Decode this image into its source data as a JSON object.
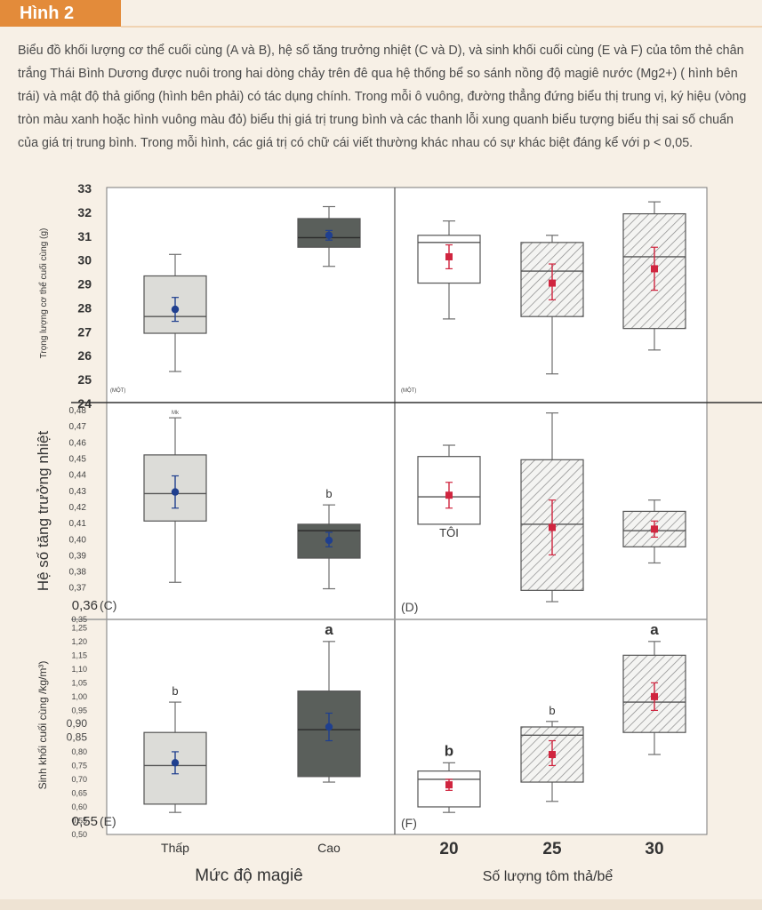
{
  "figure_tag": "Hình 2",
  "caption": "Biểu đồ khối lượng cơ thể cuối cùng (A và B), hệ số tăng trưởng nhiệt (C và D), và sinh khối cuối cùng (E và F) của tôm thẻ chân trắng Thái Bình Dương được nuôi trong hai dòng chảy trên đê qua hệ thống bể so sánh nồng độ magiê nước (Mg2+) ( hình bên trái) và mật độ thả giống (hình bên phải) có tác dụng chính. Trong mỗi ô vuông, đường thẳng đứng biểu thị trung vị, ký hiệu (vòng tròn màu xanh hoặc hình vuông màu đỏ) biểu thị giá trị trung bình và các thanh lỗi xung quanh biểu tượng biểu thị sai số chuẩn của giá trị trung bình. Trong mỗi hình, các giá trị có chữ cái viết thường khác nhau có sự khác biệt đáng kể với p < 0,05.",
  "colors": {
    "accent": "#e38b3a",
    "light_box": "#dcdcd8",
    "dark_box": "#5a5f5b",
    "blue_mean": "#1f3f8f",
    "red_mean": "#d0253f"
  },
  "chart_data": [
    {
      "panel": "A",
      "type": "box",
      "ylabel": "Trọng lượng cơ thể cuối cùng (g)",
      "ylim": [
        24,
        33
      ],
      "yticks": [
        "24",
        "25",
        "26",
        "27",
        "28",
        "29",
        "30",
        "31",
        "32",
        "33"
      ],
      "panel_label": "(MỘT)",
      "categories": [
        "Thấp",
        "Cao"
      ],
      "boxes": [
        {
          "min": 25.3,
          "q1": 26.9,
          "median": 27.6,
          "q3": 29.3,
          "max": 30.2,
          "mean": 27.9,
          "se_low": 27.4,
          "se_high": 28.4,
          "fill": "light",
          "letter": ""
        },
        {
          "min": 29.7,
          "q1": 30.5,
          "median": 30.9,
          "q3": 31.7,
          "max": 32.2,
          "mean": 31.0,
          "se_low": 30.8,
          "se_high": 31.2,
          "fill": "dark",
          "letter": ""
        }
      ]
    },
    {
      "panel": "B",
      "type": "box",
      "ylim": [
        24,
        33
      ],
      "panel_label": "(MỘT)",
      "categories": [
        "20",
        "25",
        "30"
      ],
      "boxes": [
        {
          "min": 27.5,
          "q1": 29.0,
          "median": 30.7,
          "q3": 31.0,
          "max": 31.6,
          "mean": 30.1,
          "se_low": 29.6,
          "se_high": 30.6,
          "fill": "white",
          "letter": ""
        },
        {
          "min": 25.2,
          "q1": 27.6,
          "median": 29.5,
          "q3": 30.7,
          "max": 31.0,
          "mean": 29.0,
          "se_low": 28.3,
          "se_high": 29.8,
          "fill": "hatch",
          "letter": ""
        },
        {
          "min": 26.2,
          "q1": 27.1,
          "median": 30.1,
          "q3": 31.9,
          "max": 32.4,
          "mean": 29.6,
          "se_low": 28.7,
          "se_high": 30.5,
          "fill": "hatch",
          "letter": ""
        }
      ]
    },
    {
      "panel": "C",
      "type": "box",
      "ylabel": "Hệ số tăng trưởng nhiệt",
      "ylim": [
        0.35,
        0.485
      ],
      "yticks": [
        "0,37",
        "0,38",
        "0,39",
        "0,40",
        "0,41",
        "0,42",
        "0,43",
        "0,44",
        "0,45",
        "0,46",
        "0,47",
        "0,48"
      ],
      "panel_label": "(C)",
      "ymin_label": "0,36",
      "top_letter": "Mk",
      "categories": [
        "Thấp",
        "Cao"
      ],
      "boxes": [
        {
          "min": 0.373,
          "q1": 0.411,
          "median": 0.428,
          "q3": 0.452,
          "max": 0.475,
          "mean": 0.429,
          "se_low": 0.419,
          "se_high": 0.439,
          "fill": "light",
          "letter": ""
        },
        {
          "min": 0.369,
          "q1": 0.388,
          "median": 0.405,
          "q3": 0.409,
          "max": 0.421,
          "mean": 0.399,
          "se_low": 0.395,
          "se_high": 0.404,
          "fill": "dark",
          "letter": "b"
        }
      ]
    },
    {
      "panel": "D",
      "type": "box",
      "ylim": [
        0.35,
        0.485
      ],
      "panel_label": "(D)",
      "categories": [
        "20",
        "25",
        "30"
      ],
      "boxes": [
        {
          "min": 0.409,
          "q1": 0.409,
          "median": 0.426,
          "q3": 0.451,
          "max": 0.458,
          "mean": 0.427,
          "se_low": 0.419,
          "se_high": 0.435,
          "fill": "white",
          "letter": "TÔI"
        },
        {
          "min": 0.361,
          "q1": 0.368,
          "median": 0.409,
          "q3": 0.449,
          "max": 0.478,
          "mean": 0.407,
          "se_low": 0.39,
          "se_high": 0.424,
          "fill": "hatch",
          "letter": ""
        },
        {
          "min": 0.385,
          "q1": 0.395,
          "median": 0.405,
          "q3": 0.417,
          "max": 0.424,
          "mean": 0.406,
          "se_low": 0.401,
          "se_high": 0.411,
          "fill": "hatch",
          "letter": ""
        }
      ]
    },
    {
      "panel": "E",
      "type": "box",
      "ylabel": "Sinh khối cuối cùng /kg/m³)",
      "ylim": [
        0.5,
        1.28
      ],
      "yticks": [
        "0,50",
        "0,55",
        "0,60",
        "0,65",
        "0,70",
        "0,75",
        "0,80",
        "0,85",
        "0,90",
        "0,95",
        "1,00",
        "1,05",
        "1,10",
        "1,15",
        "1,20",
        "1,25"
      ],
      "top_tick": "0,35",
      "panel_label": "(E)",
      "ymin_label": "0,55",
      "categories": [
        "Thấp",
        "Cao"
      ],
      "boxes": [
        {
          "min": 0.58,
          "q1": 0.61,
          "median": 0.75,
          "q3": 0.87,
          "max": 0.98,
          "mean": 0.76,
          "se_low": 0.72,
          "se_high": 0.8,
          "fill": "light",
          "letter": "b"
        },
        {
          "min": 0.69,
          "q1": 0.71,
          "median": 0.88,
          "q3": 1.02,
          "max": 1.2,
          "mean": 0.89,
          "se_low": 0.84,
          "se_high": 0.94,
          "fill": "dark",
          "letter": "a"
        }
      ]
    },
    {
      "panel": "F",
      "type": "box",
      "ylim": [
        0.5,
        1.28
      ],
      "panel_label": "(F)",
      "categories": [
        "20",
        "25",
        "30"
      ],
      "boxes": [
        {
          "min": 0.58,
          "q1": 0.6,
          "median": 0.7,
          "q3": 0.73,
          "max": 0.76,
          "mean": 0.68,
          "se_low": 0.66,
          "se_high": 0.7,
          "fill": "white",
          "letter": "b"
        },
        {
          "min": 0.62,
          "q1": 0.69,
          "median": 0.86,
          "q3": 0.89,
          "max": 0.91,
          "mean": 0.79,
          "se_low": 0.75,
          "se_high": 0.84,
          "fill": "hatch",
          "letter": "b"
        },
        {
          "min": 0.79,
          "q1": 0.87,
          "median": 0.98,
          "q3": 1.15,
          "max": 1.2,
          "mean": 1.0,
          "se_low": 0.95,
          "se_high": 1.05,
          "fill": "hatch",
          "letter": "a"
        }
      ]
    }
  ],
  "axes": {
    "left_xlabel": "Mức độ magiê",
    "right_xlabel": "Số lượng tôm thả/bể",
    "left_categories": [
      "Thấp",
      "Cao"
    ],
    "right_categories": [
      "20",
      "25",
      "30"
    ]
  }
}
